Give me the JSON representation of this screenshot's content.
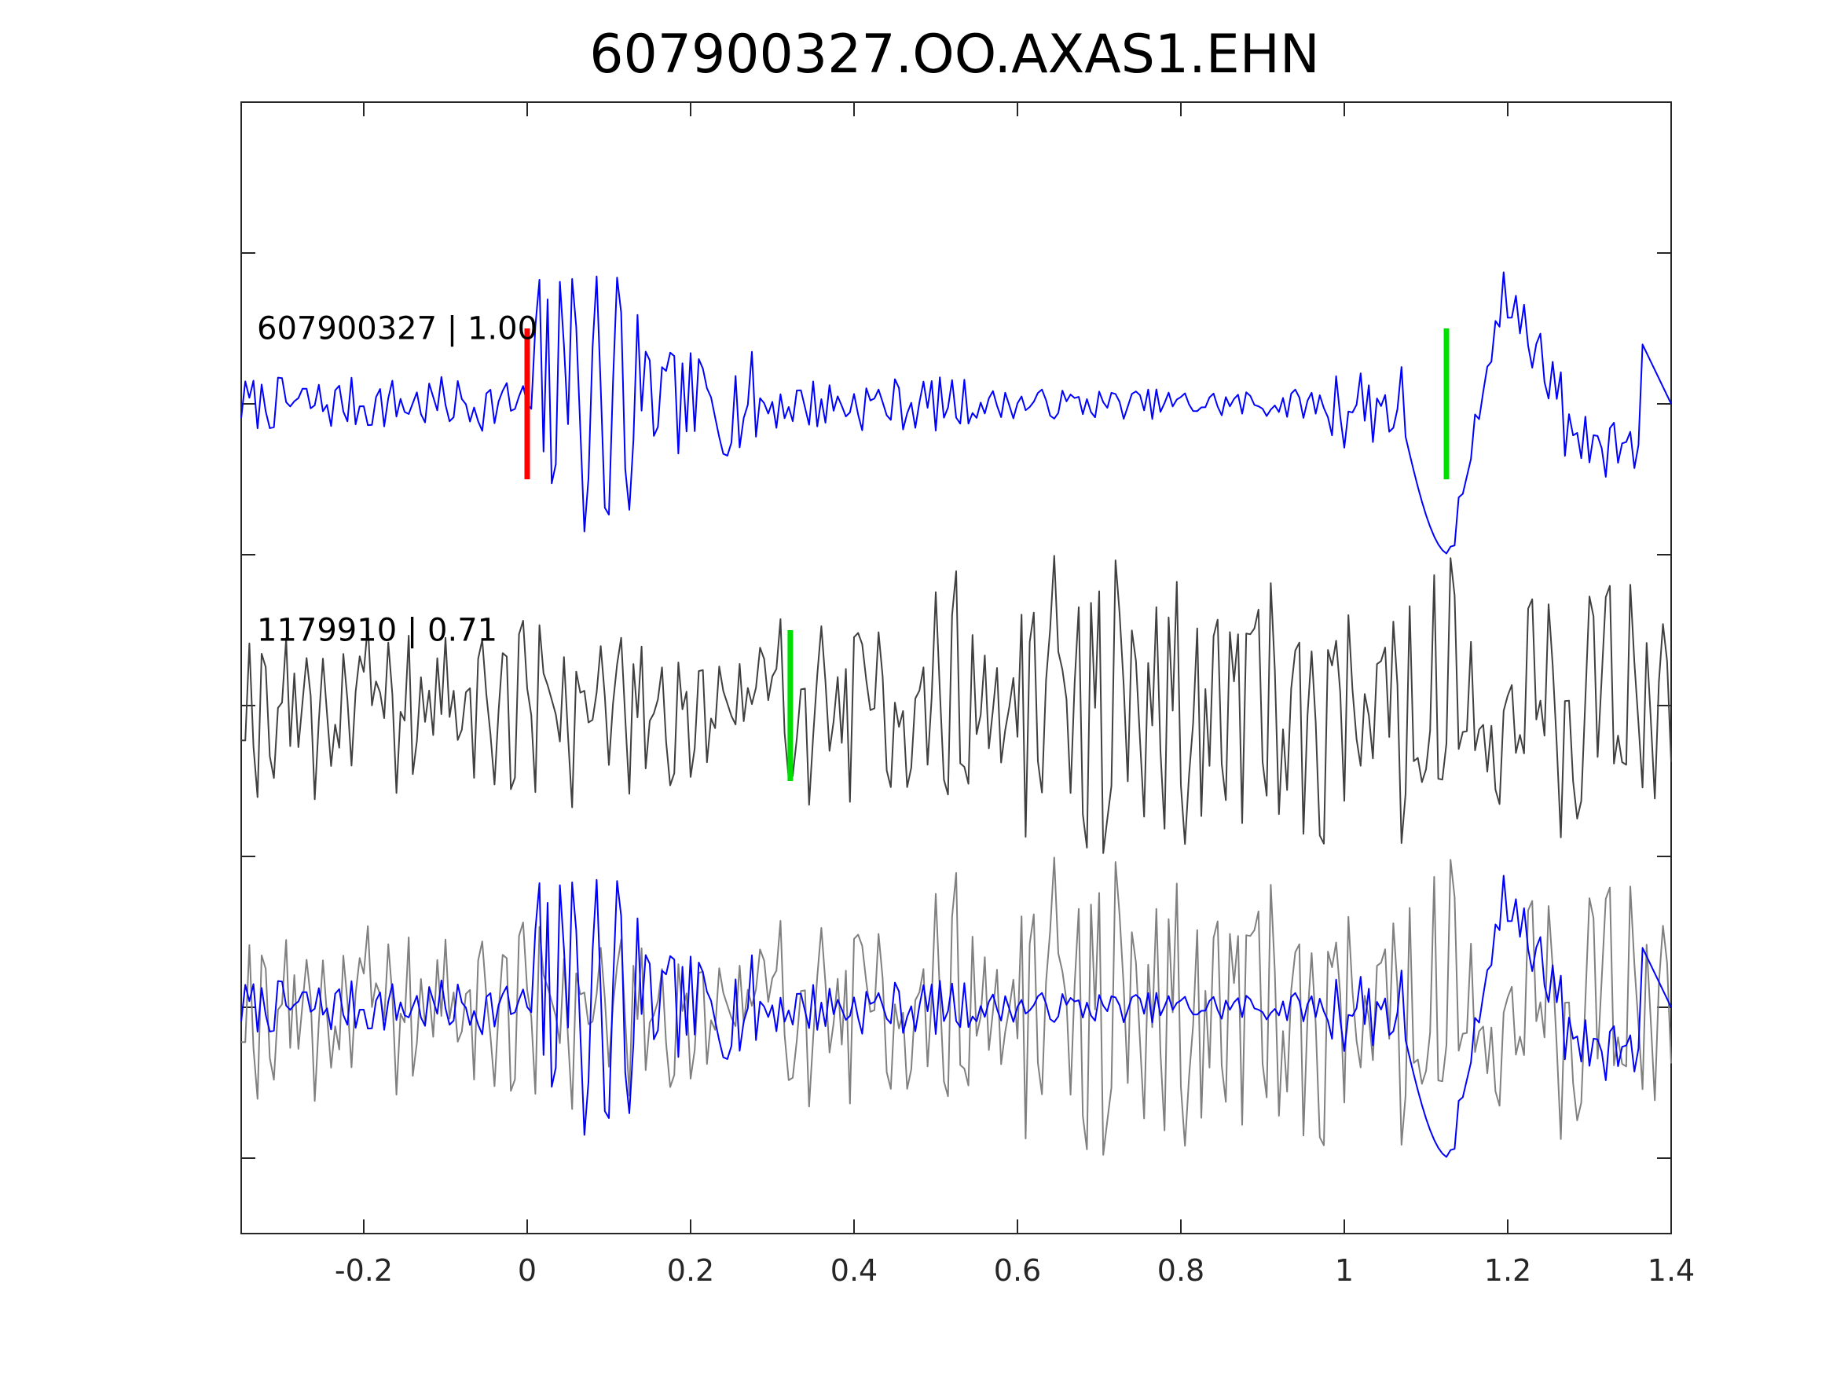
{
  "chart_data": {
    "type": "line",
    "title": "607900327.OO.AXAS1.EHN",
    "xlabel": "",
    "ylabel": "",
    "xlim": [
      -0.35,
      1.4
    ],
    "xticks": [
      -0.2,
      0,
      0.2,
      0.4,
      0.6,
      0.8,
      1,
      1.2,
      1.4
    ],
    "xtick_labels": [
      "-0.2",
      "0",
      "0.2",
      "0.4",
      "0.6",
      "0.8",
      "1",
      "1.2",
      "1.4"
    ],
    "ylim": [
      -3.5,
      4.0
    ],
    "yticks": [
      -3,
      -2,
      -1,
      0,
      1,
      2,
      3
    ],
    "grid": false,
    "traces": [
      {
        "label": "607900327 | 1.00",
        "color": "#0000ff",
        "offset": 2,
        "pick_red": 0.0,
        "pick_green": 1.125,
        "segments": [
          [
            -0.35,
            0.0,
            0.0,
            0.1,
            1.4
          ],
          [
            0.0,
            0.0,
            0.5,
            0.12,
            1.4
          ],
          [
            0.14,
            0.3,
            0.25,
            0.05,
            1.4
          ],
          [
            0.3,
            0.4,
            0.15,
            0.07,
            1.4
          ],
          [
            0.55,
            0.98,
            0.1,
            0.05,
            1.4
          ],
          [
            0.98,
            1.07,
            0.25,
            0.05,
            1.4
          ]
        ]
      },
      {
        "label": "1179910 | 0.71",
        "color": "#404040",
        "offset": 0,
        "pick_green": 0.322
      }
    ],
    "overlay_offset": -2,
    "overlay_colors": [
      "#808080",
      "#0000ff"
    ]
  }
}
